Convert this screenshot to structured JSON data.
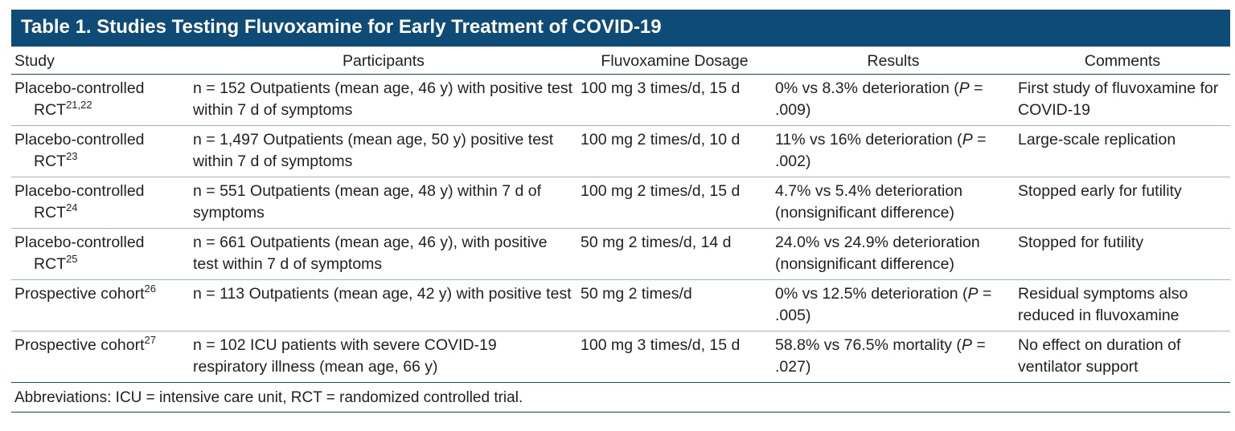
{
  "title": "Table 1. Studies Testing Fluvoxamine for Early Treatment of COVID-19",
  "table": {
    "columns": [
      "Study",
      "Participants",
      "Fluvoxamine Dosage",
      "Results",
      "Comments"
    ],
    "rows": [
      [
        [
          "Placebo-controlled RCT",
          {
            "text": "21,22",
            "style": "sup"
          }
        ],
        [
          "n = 152 Outpatients (mean age, 46 y) with positive test within 7 d of symptoms"
        ],
        [
          "100 mg 3 times/d, 15 d"
        ],
        [
          "0% vs 8.3% deterioration (",
          {
            "text": "P",
            "style": "italic"
          },
          " = .009)"
        ],
        [
          "First study of fluvoxamine for COVID-19"
        ]
      ],
      [
        [
          "Placebo-controlled RCT",
          {
            "text": "23",
            "style": "sup"
          }
        ],
        [
          "n = 1,497 Outpatients (mean age, 50 y) positive test within 7 d of symptoms"
        ],
        [
          "100 mg 2 times/d, 10 d"
        ],
        [
          "11% vs 16% deterioration (",
          {
            "text": "P",
            "style": "italic"
          },
          " = .002)"
        ],
        [
          "Large-scale replication"
        ]
      ],
      [
        [
          "Placebo-controlled RCT",
          {
            "text": "24",
            "style": "sup"
          }
        ],
        [
          "n = 551 Outpatients (mean age, 48 y) within 7 d of symptoms"
        ],
        [
          "100 mg 2 times/d, 15 d"
        ],
        [
          "4.7% vs 5.4% deterioration (nonsignificant difference)"
        ],
        [
          "Stopped early for futility"
        ]
      ],
      [
        [
          "Placebo-controlled RCT",
          {
            "text": "25",
            "style": "sup"
          }
        ],
        [
          "n = 661 Outpatients (mean age, 46 y), with positive test within 7 d of symptoms"
        ],
        [
          "50 mg 2 times/d, 14 d"
        ],
        [
          "24.0% vs 24.9% deterioration (nonsignificant difference)"
        ],
        [
          "Stopped for futility"
        ]
      ],
      [
        [
          "Prospective cohort",
          {
            "text": "26",
            "style": "sup"
          }
        ],
        [
          "n = 113 Outpatients (mean age, 42 y) with positive test"
        ],
        [
          "50 mg 2 times/d"
        ],
        [
          "0% vs 12.5% deterioration (",
          {
            "text": "P",
            "style": "italic"
          },
          " = .005)"
        ],
        [
          "Residual symptoms also reduced in fluvoxamine"
        ]
      ],
      [
        [
          "Prospective cohort",
          {
            "text": "27",
            "style": "sup"
          }
        ],
        [
          "n = 102 ICU patients with severe COVID-19 respiratory illness (mean age, 66 y)"
        ],
        [
          "100 mg 3 times/d, 15 d"
        ],
        [
          "58.8% vs 76.5% mortality (",
          {
            "text": "P",
            "style": "italic"
          },
          " = .027)"
        ],
        [
          "No effect on duration of ventilator support"
        ]
      ]
    ],
    "footnote": "Abbreviations: ICU = intensive care unit, RCT = randomized controlled trial."
  }
}
